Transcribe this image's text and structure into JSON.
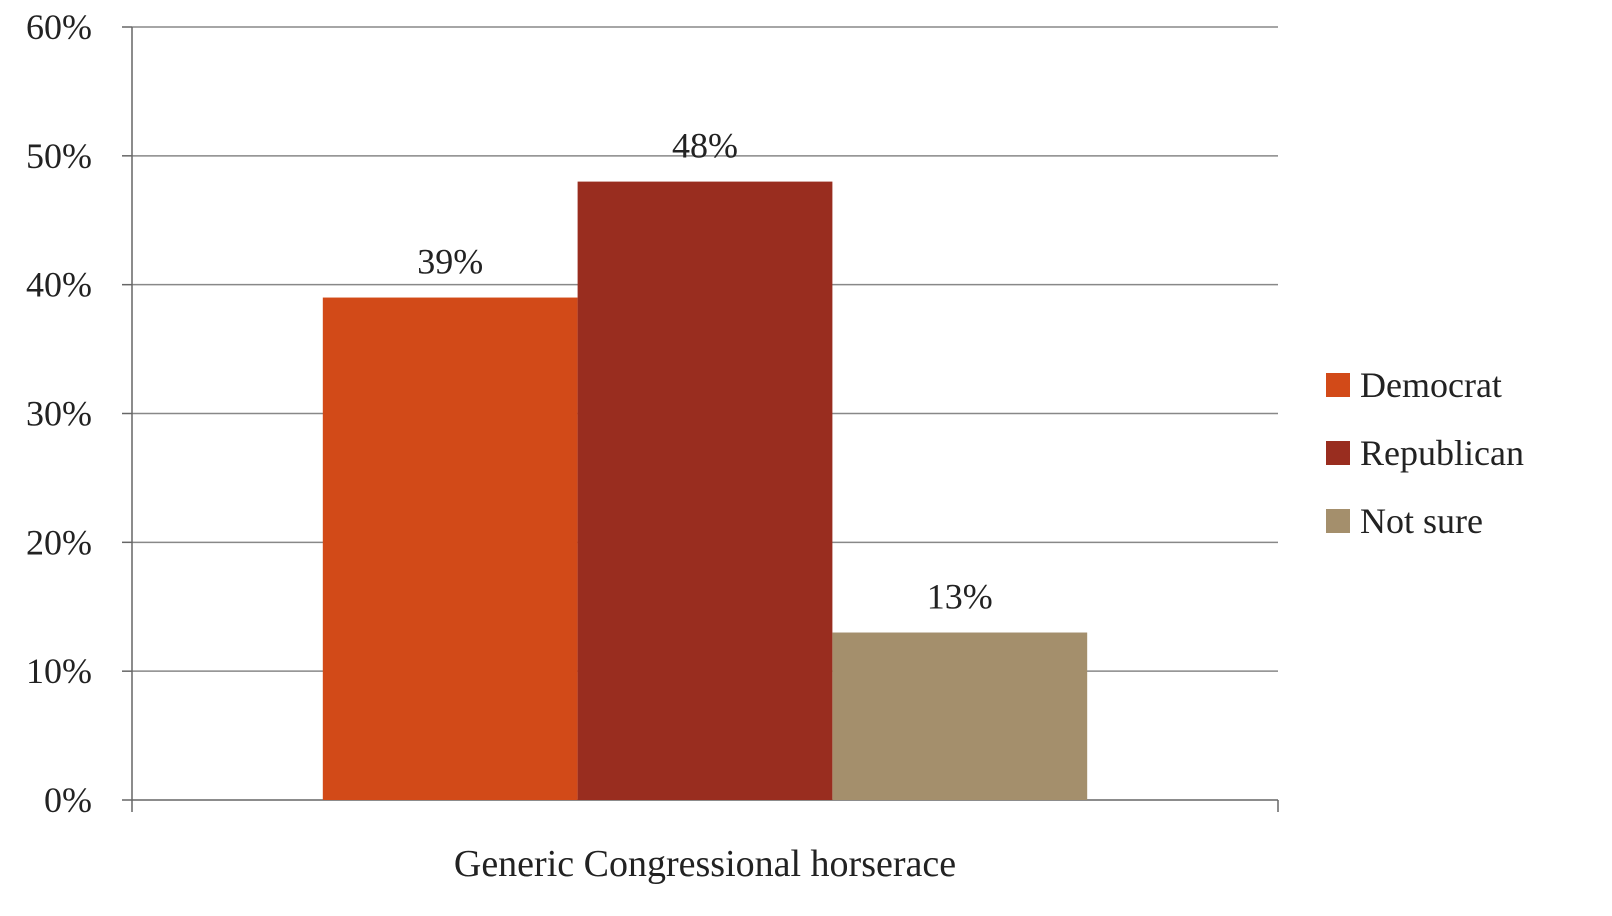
{
  "chart_data": {
    "type": "bar",
    "title": "",
    "xlabel": "",
    "ylabel": "",
    "categories": [
      "Generic Congressional horserace"
    ],
    "series": [
      {
        "name": "Democrat",
        "values": [
          39
        ],
        "label": "39%",
        "color": "#d24a18"
      },
      {
        "name": "Republican",
        "values": [
          48
        ],
        "label": "48%",
        "color": "#992d1f"
      },
      {
        "name": "Not sure",
        "values": [
          13
        ],
        "label": "13%",
        "color": "#a48f6c"
      }
    ],
    "ylim": [
      0,
      60
    ],
    "yticks": [
      0,
      10,
      20,
      30,
      40,
      50,
      60
    ],
    "ytick_labels": [
      "0%",
      "10%",
      "20%",
      "30%",
      "40%",
      "50%",
      "60%"
    ],
    "grid": true,
    "legend_position": "right",
    "colors": {
      "gridline": "#888888",
      "axis": "#666666",
      "text": "#222222"
    }
  }
}
